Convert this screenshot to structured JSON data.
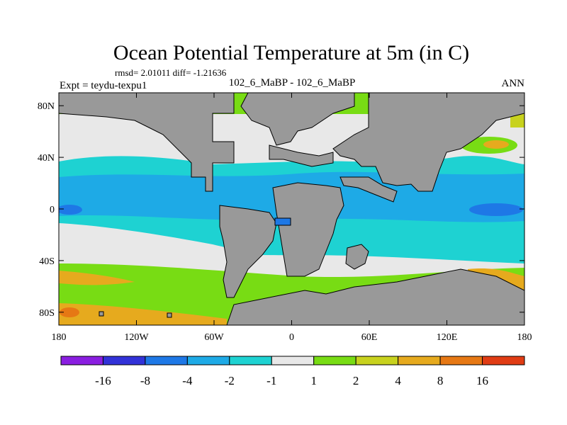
{
  "chart_data": {
    "type": "heatmap",
    "title": "Ocean Potential Temperature at 5m (in C)",
    "stats": "rmsd= 2.01011 diff= -1.21636",
    "experiment": "Expt = teydu-texpu1",
    "comparison": "102_6_MaBP - 102_6_MaBP",
    "season": "ANN",
    "x_ticks": [
      "180",
      "120W",
      "60W",
      "0",
      "60E",
      "120E",
      "180"
    ],
    "x_tick_values": [
      -180,
      -120,
      -60,
      0,
      60,
      120,
      180
    ],
    "y_ticks": [
      "80N",
      "40N",
      "0",
      "40S",
      "80S"
    ],
    "y_tick_values": [
      80,
      40,
      0,
      -40,
      -80
    ],
    "xlim": [
      -180,
      180
    ],
    "ylim": [
      -90,
      90
    ],
    "colorbar": {
      "labels": [
        "-16",
        "-8",
        "-4",
        "-2",
        "-1",
        "1",
        "2",
        "4",
        "8",
        "16"
      ],
      "colors": [
        "#8a1ee0",
        "#3232d8",
        "#1e78e6",
        "#1eaae6",
        "#1ed2d2",
        "#e8e8e8",
        "#78dc14",
        "#c8d21e",
        "#e6aa1e",
        "#e67814",
        "#e03c14"
      ]
    },
    "land_color": "#999999",
    "zonal_bands": [
      {
        "lat": [
          75,
          90
        ],
        "level": "1-2"
      },
      {
        "lat": [
          60,
          75
        ],
        "level": "-1-1"
      },
      {
        "lat": [
          35,
          60
        ],
        "level": "-1-1"
      },
      {
        "lat": [
          25,
          35
        ],
        "level": "-2--1"
      },
      {
        "lat": [
          -25,
          25
        ],
        "level": "-4--2"
      },
      {
        "lat": [
          -45,
          -25
        ],
        "level": "-2--1"
      },
      {
        "lat": [
          -60,
          -45
        ],
        "level": "-1-1"
      },
      {
        "lat": [
          -75,
          -60
        ],
        "level": "1-2"
      },
      {
        "lat": [
          -90,
          -75
        ],
        "level": "4-8"
      }
    ]
  }
}
